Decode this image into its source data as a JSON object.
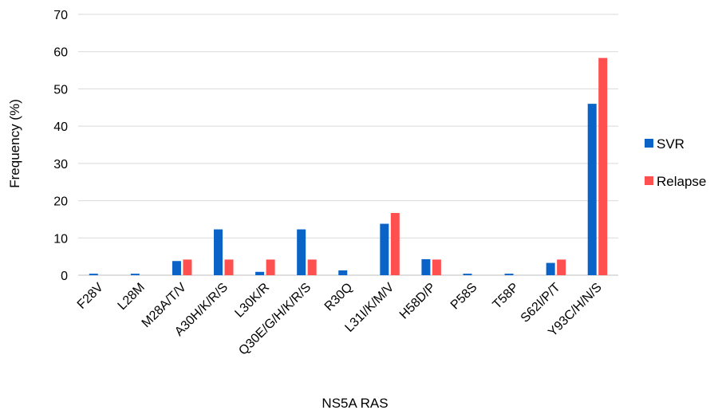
{
  "chart_data": {
    "type": "bar",
    "title": "",
    "xlabel": "NS5A RAS",
    "ylabel": "Frequency (%)",
    "ylim": [
      0,
      70
    ],
    "yticks": [
      0,
      10,
      20,
      30,
      40,
      50,
      60,
      70
    ],
    "grid": true,
    "legend_position": "right",
    "categories": [
      "F28V",
      "L28M",
      "M28A/T/V",
      "A30H/K/R/S",
      "L30K/R",
      "Q30E/G/H/K/R/S",
      "R30Q",
      "L31I/K/M/V",
      "H58D/P",
      "P58S",
      "T58P",
      "S62I/P/T",
      "Y93C/H/N/S"
    ],
    "series": [
      {
        "name": "SVR",
        "color": "#0a64c8",
        "values": [
          0.4,
          0.4,
          3.8,
          12.3,
          0.9,
          12.3,
          1.3,
          13.8,
          4.3,
          0.4,
          0.4,
          3.3,
          46
        ]
      },
      {
        "name": "Relapse",
        "color": "#ff5050",
        "values": [
          0,
          0,
          4.2,
          4.2,
          4.2,
          4.2,
          0,
          16.7,
          4.2,
          0,
          0,
          4.2,
          58.3
        ]
      }
    ]
  }
}
